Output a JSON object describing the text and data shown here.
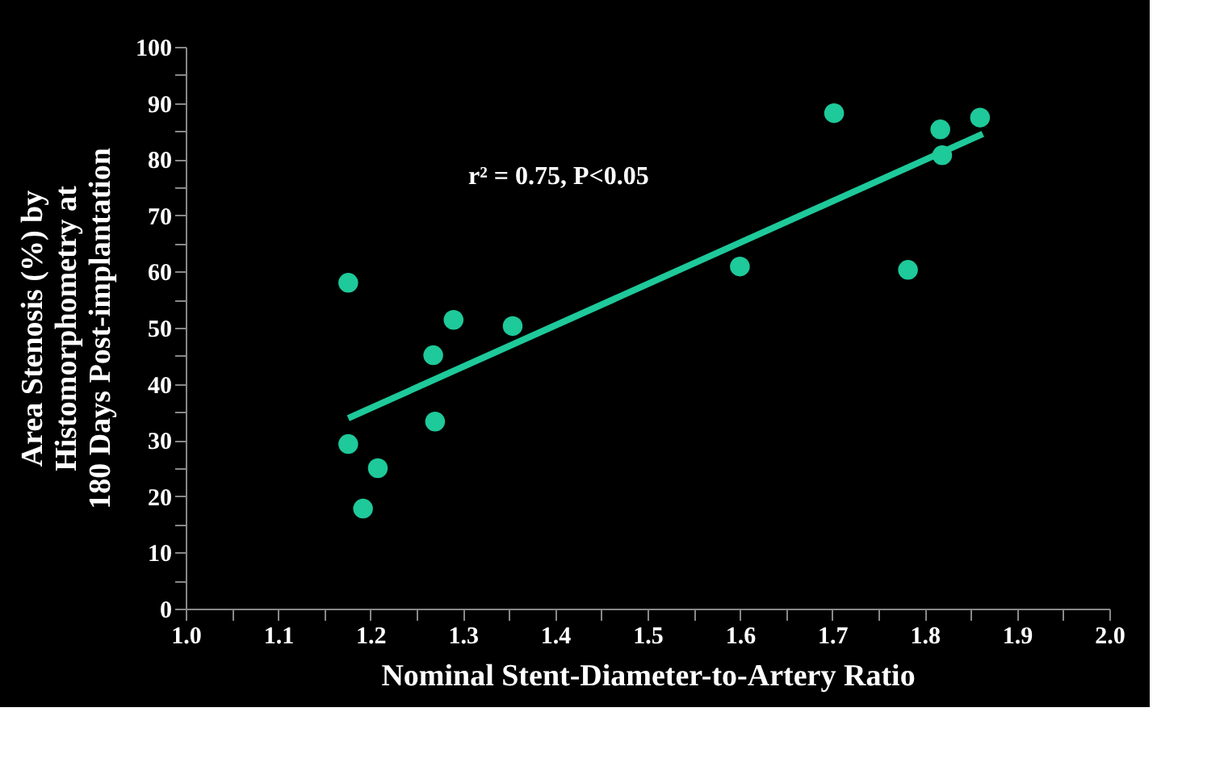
{
  "chart_data": {
    "type": "scatter",
    "xlabel": "Nominal Stent-Diameter-to-Artery Ratio",
    "ylabel": "Area Stenosis (%) by\nHistomorphometry at\n180 Days Post-implantation",
    "annotations": [
      "r² = 0.75, P<0.05"
    ],
    "x": [
      1.176,
      1.29,
      1.354,
      1.268,
      1.27,
      1.176,
      1.208,
      1.192,
      1.702,
      1.817,
      1.86,
      1.819,
      1.6,
      1.782
    ],
    "series": [
      {
        "marker": "circle",
        "color": "#1ec99a",
        "values": [
          58.0,
          51.4,
          50.3,
          45.1,
          33.3,
          29.3,
          25.0,
          17.8,
          88.2,
          85.3,
          87.4,
          80.7,
          60.9,
          60.3
        ]
      },
      {
        "type": "line",
        "color": "#1ec99a",
        "x": [
          1.176,
          1.863
        ],
        "values": [
          33.9,
          84.5
        ]
      }
    ],
    "xlim": [
      1.0,
      2.0
    ],
    "ylim": [
      0,
      100
    ],
    "xticks": [
      {
        "value": 1.0,
        "label": "1.0"
      },
      {
        "value": 1.05,
        "label": null
      },
      {
        "value": 1.1,
        "label": "1.1"
      },
      {
        "value": 1.15,
        "label": null
      },
      {
        "value": 1.2,
        "label": "1.2"
      },
      {
        "value": 1.25,
        "label": null
      },
      {
        "value": 1.3,
        "label": "1.3"
      },
      {
        "value": 1.35,
        "label": null
      },
      {
        "value": 1.4,
        "label": "1.4"
      },
      {
        "value": 1.45,
        "label": null
      },
      {
        "value": 1.5,
        "label": "1.5"
      },
      {
        "value": 1.55,
        "label": null
      },
      {
        "value": 1.6,
        "label": "1.6"
      },
      {
        "value": 1.65,
        "label": null
      },
      {
        "value": 1.7,
        "label": "1.7"
      },
      {
        "value": 1.75,
        "label": null
      },
      {
        "value": 1.8,
        "label": "1.8"
      },
      {
        "value": 1.85,
        "label": null
      },
      {
        "value": 1.9,
        "label": "1.9"
      },
      {
        "value": 1.95,
        "label": null
      },
      {
        "value": 2.0,
        "label": "2.0"
      }
    ],
    "yticks": [
      0,
      {
        "value": 5,
        "label": null
      },
      10,
      {
        "value": 15,
        "label": null
      },
      20,
      {
        "value": 25,
        "label": null
      },
      30,
      {
        "value": 35,
        "label": null
      },
      40,
      {
        "value": 45,
        "label": null
      },
      50,
      {
        "value": 55,
        "label": null
      },
      60,
      {
        "value": 65,
        "label": null
      },
      70,
      {
        "value": 75,
        "label": null
      },
      80,
      {
        "value": 85,
        "label": null
      },
      90,
      {
        "value": 95,
        "label": null
      },
      100
    ],
    "grid": false
  }
}
